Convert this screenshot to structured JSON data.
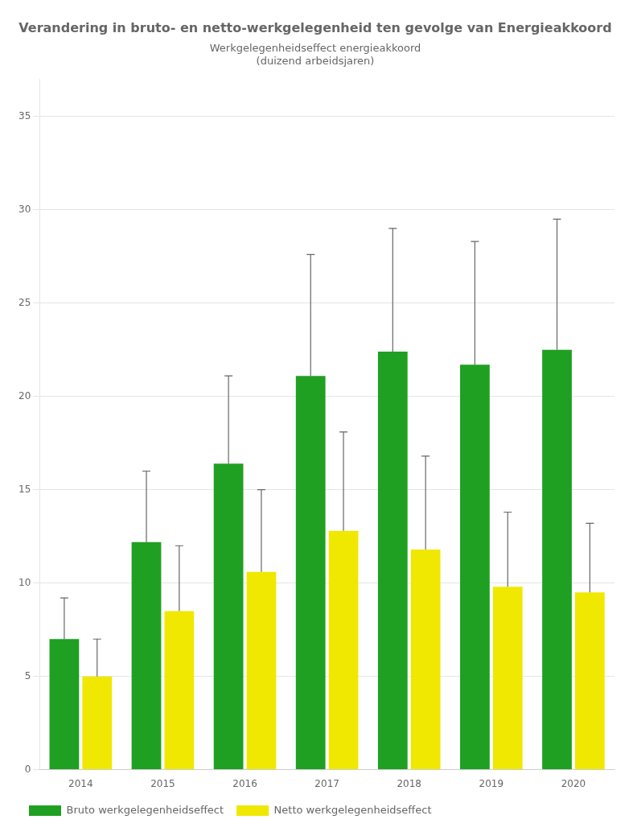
{
  "chart_data": {
    "type": "bar",
    "title": "Verandering in bruto- en netto-werkgelegenheid ten gevolge van Energieakkoord",
    "subtitle": [
      "Werkgelegenheidseffect energieakkoord",
      "(duizend arbeidsjaren)"
    ],
    "categories": [
      "2014",
      "2015",
      "2016",
      "2017",
      "2018",
      "2019",
      "2020"
    ],
    "series": [
      {
        "name": "Bruto werkgelegenheidseffect",
        "color": "#1fa022",
        "values": [
          7.0,
          12.2,
          16.4,
          21.1,
          22.4,
          21.7,
          22.5
        ],
        "errors_upper": [
          2.2,
          3.8,
          4.7,
          6.5,
          6.6,
          6.6,
          7.0
        ],
        "errors_lower": [
          0.0,
          0.0,
          0.0,
          0.0,
          0.0,
          0.0,
          0.0
        ]
      },
      {
        "name": "Netto werkgelegenheidseffect",
        "color": "#f0e800",
        "values": [
          5.0,
          8.5,
          10.6,
          12.8,
          11.8,
          9.8,
          9.5
        ],
        "errors_upper": [
          2.0,
          3.5,
          4.4,
          5.3,
          5.0,
          4.0,
          3.7
        ],
        "errors_lower": [
          0.0,
          0.0,
          0.0,
          0.0,
          0.0,
          0.0,
          0.0
        ]
      }
    ],
    "ylim": [
      0,
      37
    ],
    "yticks": [
      0,
      5,
      10,
      15,
      20,
      25,
      30,
      35
    ],
    "grid": true,
    "legend": "lower left"
  }
}
